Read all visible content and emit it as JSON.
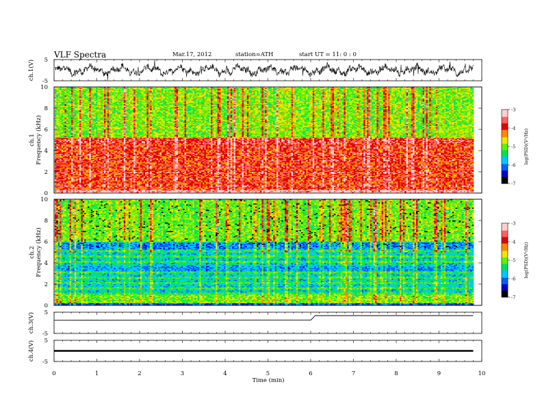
{
  "header": {
    "title": "VLF  Spectra",
    "date": "Mar.17, 2012",
    "station": "station=ATH",
    "start": "start  UT  =    11: 0  : 0"
  },
  "chart_data": [
    {
      "id": "ch1-waveform",
      "type": "line",
      "ylabel": "ch.1(V)",
      "ylim": [
        -5,
        5
      ],
      "yticks": [
        "5",
        "-5"
      ],
      "xlim": [
        0,
        10
      ],
      "data_end_min": 9.8
    },
    {
      "id": "ch1-spectrogram",
      "type": "heatmap",
      "ylabel": "ch.1\nFrequency  (kHz)",
      "ylabel_lines": [
        "ch.1",
        "Frequency  (kHz)"
      ],
      "ylim": [
        0,
        10
      ],
      "yticks": [
        "0",
        "2",
        "4",
        "6",
        "8",
        "10"
      ],
      "xlim": [
        0,
        10
      ],
      "colorbar": {
        "label": "log(PSD)(V²/Hz)",
        "range": [
          -7,
          -3
        ],
        "ticks": [
          "-3",
          "-4",
          "-5",
          "-6",
          "-7"
        ]
      }
    },
    {
      "id": "ch2-spectrogram",
      "type": "heatmap",
      "ylabel": "ch.2\nFrequency  (kHz)",
      "ylabel_lines": [
        "ch.2",
        "Frequency  (kHz)"
      ],
      "ylim": [
        0,
        10
      ],
      "yticks": [
        "0",
        "2",
        "4",
        "6",
        "8",
        "10"
      ],
      "xlim": [
        0,
        10
      ],
      "colorbar": {
        "label": "log(PSD)(V²/Hz)",
        "range": [
          -7,
          -3
        ],
        "ticks": [
          "-3",
          "-4",
          "-5",
          "-6",
          "-7"
        ]
      }
    },
    {
      "id": "ch3-waveform",
      "type": "line",
      "ylabel": "ch.3(V)",
      "ylim": [
        -5,
        5
      ],
      "yticks": [
        "5",
        "-5"
      ],
      "x": [
        0,
        6.0,
        6.05,
        6.1,
        9.8
      ],
      "y": [
        1.2,
        1.3,
        2.2,
        3.4,
        3.4
      ]
    },
    {
      "id": "ch4-waveform",
      "type": "line",
      "ylabel": "ch.4(V)",
      "ylim": [
        -5,
        5
      ],
      "yticks": [
        "5",
        "-5"
      ],
      "x": [
        0,
        9.8
      ],
      "y": [
        0,
        0
      ]
    }
  ],
  "xaxis": {
    "label": "Time  (min)",
    "ticks": [
      "0",
      "1",
      "2",
      "3",
      "4",
      "5",
      "6",
      "7",
      "8",
      "9",
      "10"
    ],
    "range": [
      0,
      10
    ]
  },
  "colors": {
    "colormap": [
      "#000000",
      "#0000d0",
      "#0060ff",
      "#00c8ff",
      "#00e060",
      "#60f000",
      "#e8e800",
      "#ff8800",
      "#e00000",
      "#ff6060",
      "#ffd0d0"
    ]
  }
}
